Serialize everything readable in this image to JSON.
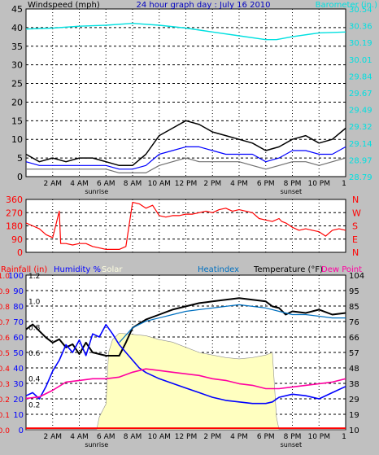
{
  "colors": {
    "background": "#c0c0c0",
    "plot_bg": "#ffffff",
    "grid": "#000000",
    "wind_speed": "#000000",
    "wind_gust": "#707070",
    "wind_avg": "#0000ff",
    "barometer": "#00e0e0",
    "direction": "#ff0000",
    "rain": "#ff0000",
    "humidity": "#0000ff",
    "solar": "#ffffc0",
    "heat_index": "#0070c0",
    "temperature": "#000000",
    "dew_point": "#ff00a0",
    "title": "#0000c0"
  },
  "chart_data": [
    {
      "id": "wind",
      "type": "line",
      "title": "24 hour graph day : July 16 2010",
      "ylabel_left": "Windspeed (mph)",
      "ylabel_right": "Barometer (in.)",
      "ylim_left": [
        0,
        45
      ],
      "yticks_left": [
        "0",
        "5",
        "10",
        "15",
        "20",
        "25",
        "30",
        "35",
        "40",
        "45"
      ],
      "ylim_right": [
        28.79,
        30.54
      ],
      "yticks_right": [
        "28.79",
        "28.97",
        "29.14",
        "29.32",
        "29.49",
        "29.67",
        "29.84",
        "30.01",
        "30.19",
        "30.36",
        "30.54"
      ],
      "x_ticks": [
        "2 AM",
        "4 AM",
        "6 AM",
        "8 AM",
        "10 AM",
        "12 PM",
        "2 PM",
        "4 PM",
        "6 PM",
        "8 PM",
        "10 PM",
        "1"
      ],
      "markers": [
        "sunrise",
        "sunset"
      ],
      "series": [
        {
          "key": "barometer",
          "axis": "right",
          "x": [
            0,
            2,
            4,
            6,
            8,
            10,
            12,
            14,
            16,
            18,
            18.8,
            20,
            22,
            24
          ],
          "y": [
            30.33,
            30.34,
            30.36,
            30.37,
            30.39,
            30.37,
            30.34,
            30.3,
            30.26,
            30.22,
            30.22,
            30.25,
            30.29,
            30.3
          ]
        },
        {
          "key": "wind_speed",
          "axis": "left",
          "x": [
            0,
            1,
            2,
            3,
            4,
            5,
            6,
            7,
            8,
            9,
            10,
            11,
            12,
            13,
            14,
            15,
            16,
            17,
            18,
            19,
            20,
            21,
            22,
            23,
            24
          ],
          "y": [
            6,
            4,
            5,
            4,
            5,
            5,
            4,
            3,
            3,
            6,
            11,
            13,
            15,
            14,
            12,
            11,
            10,
            9,
            7,
            8,
            10,
            11,
            9,
            10,
            13
          ]
        },
        {
          "key": "wind_avg",
          "axis": "left",
          "x": [
            0,
            1,
            2,
            3,
            4,
            5,
            6,
            7,
            8,
            9,
            10,
            11,
            12,
            13,
            14,
            15,
            16,
            17,
            18,
            19,
            20,
            21,
            22,
            23,
            24
          ],
          "y": [
            4,
            3,
            3,
            3,
            3,
            3,
            3,
            2,
            2,
            3,
            6,
            7,
            8,
            8,
            7,
            6,
            6,
            6,
            4,
            5,
            7,
            7,
            6,
            6,
            8
          ]
        },
        {
          "key": "wind_gust",
          "axis": "left",
          "x": [
            0,
            1,
            2,
            3,
            4,
            5,
            6,
            7,
            8,
            9,
            10,
            11,
            12,
            13,
            14,
            15,
            16,
            17,
            18,
            19,
            20,
            21,
            22,
            23,
            24
          ],
          "y": [
            2,
            2,
            2,
            2,
            2,
            2,
            2,
            1,
            1,
            1,
            3,
            4,
            5,
            4,
            4,
            4,
            4,
            3,
            2,
            3,
            4,
            4,
            3,
            4,
            5
          ]
        }
      ]
    },
    {
      "id": "direction",
      "type": "line",
      "yticks_left": [
        "360",
        "270",
        "180",
        "90",
        "0"
      ],
      "ylim": [
        0,
        360
      ],
      "yticks_right": [
        "N",
        "W",
        "S",
        "E",
        "N"
      ],
      "series": [
        {
          "key": "direction",
          "x": [
            0,
            0.5,
            1,
            1.5,
            2,
            2.5,
            2.6,
            3,
            3.5,
            4,
            4.5,
            5,
            5.5,
            6,
            6.5,
            7,
            7.5,
            8,
            8.5,
            9,
            9.5,
            10,
            10.5,
            11,
            11.5,
            12,
            12.5,
            13,
            13.5,
            14,
            14.5,
            15,
            15.5,
            16,
            16.5,
            17,
            17.5,
            18,
            18.5,
            19,
            19.2,
            19.5,
            20,
            20.5,
            21,
            21.5,
            22,
            22.5,
            23,
            23.5,
            24
          ],
          "y": [
            200,
            180,
            160,
            120,
            100,
            280,
            60,
            60,
            50,
            60,
            60,
            40,
            30,
            20,
            20,
            20,
            40,
            340,
            330,
            300,
            320,
            250,
            240,
            250,
            250,
            260,
            260,
            270,
            280,
            270,
            290,
            300,
            280,
            290,
            280,
            270,
            230,
            220,
            210,
            230,
            210,
            200,
            170,
            150,
            160,
            150,
            140,
            110,
            150,
            160,
            150
          ]
        }
      ]
    },
    {
      "id": "thermo",
      "type": "line",
      "legend": [
        "Rainfall (in)",
        "Humidity %",
        "Solar",
        "Heatindex",
        "Temperature (°F)",
        "Dew Point"
      ],
      "ylim_rain": [
        0,
        1
      ],
      "yticks_rain": [
        "0.0",
        "0.1",
        "0.2",
        "0.3",
        "0.4",
        "0.5",
        "0.6",
        "0.7",
        "0.8",
        "0.9",
        "1.0"
      ],
      "yticks_humidity": [
        "0",
        "10",
        "20",
        "30",
        "40",
        "50",
        "60",
        "70",
        "80",
        "90",
        "100"
      ],
      "ylim_temp": [
        10,
        104
      ],
      "yticks_temp": [
        "10",
        "19",
        "29",
        "38",
        "48",
        "57",
        "66",
        "76",
        "85",
        "95",
        "104"
      ],
      "solar_ylim": [
        0,
        1.2
      ],
      "solar_ticks": [
        "1.2",
        "1.0",
        "0.8",
        "0.6",
        "0.4",
        "0.2"
      ],
      "series": [
        {
          "key": "solar",
          "x": [
            0,
            5.3,
            5.5,
            6,
            6.2,
            6.5,
            7,
            8,
            9,
            10,
            11,
            12,
            13,
            14,
            15,
            16,
            17,
            18,
            18.5,
            18.8,
            19,
            24
          ],
          "y": [
            0,
            0,
            0.1,
            0.2,
            0.6,
            0.7,
            0.75,
            0.74,
            0.73,
            0.7,
            0.68,
            0.64,
            0.6,
            0.58,
            0.56,
            0.55,
            0.56,
            0.58,
            0.6,
            0.1,
            0,
            0
          ]
        },
        {
          "key": "temperature",
          "x": [
            0,
            0.5,
            1,
            1.5,
            2,
            2.5,
            3,
            3.5,
            4,
            4.5,
            5,
            6,
            7,
            7.5,
            8,
            9,
            10,
            11,
            12,
            13,
            14,
            15,
            16,
            17,
            18,
            18.5,
            19,
            19.5,
            20,
            21,
            22,
            23,
            24
          ],
          "y": [
            71,
            74,
            70,
            66,
            63,
            65,
            60,
            62,
            56,
            63,
            57,
            55,
            55,
            63,
            72,
            77,
            80,
            83,
            85,
            87,
            88,
            89,
            90,
            89,
            88,
            85,
            84,
            80,
            82,
            81,
            83,
            80,
            81
          ]
        },
        {
          "key": "heat_index",
          "x": [
            7,
            8,
            9,
            10,
            11,
            12,
            13,
            14,
            15,
            16,
            17,
            18,
            19,
            20,
            21,
            22,
            23,
            24
          ],
          "y": [
            63,
            72,
            76,
            78,
            80,
            82,
            83,
            84,
            85,
            86,
            85,
            84,
            82,
            80,
            80,
            79,
            78,
            78
          ]
        },
        {
          "key": "humidity",
          "x": [
            0,
            0.5,
            1,
            1.5,
            2,
            2.5,
            3,
            3.5,
            4,
            4.5,
            5,
            5.5,
            6,
            6.5,
            7,
            7.5,
            8,
            8.5,
            9,
            10,
            11,
            12,
            13,
            14,
            15,
            16,
            17,
            18,
            18.5,
            19,
            20,
            21,
            22,
            23,
            24
          ],
          "y": [
            22,
            24,
            20,
            28,
            38,
            45,
            55,
            50,
            58,
            48,
            62,
            60,
            68,
            62,
            55,
            50,
            45,
            40,
            37,
            33,
            30,
            27,
            24,
            21,
            19,
            18,
            17,
            17,
            18,
            21,
            23,
            22,
            20,
            24,
            28
          ]
        },
        {
          "key": "dew_point",
          "x": [
            0,
            1,
            2,
            3,
            4,
            5,
            6,
            7,
            8,
            9,
            10,
            11,
            12,
            13,
            14,
            15,
            16,
            17,
            18,
            19,
            20,
            21,
            22,
            23,
            24
          ],
          "y": [
            29,
            30,
            34,
            39,
            40,
            41,
            41,
            42,
            45,
            47,
            46,
            45,
            44,
            43,
            41,
            40,
            38,
            37,
            35,
            35,
            36,
            37,
            38,
            39,
            41
          ]
        },
        {
          "key": "rain",
          "x": [
            0,
            24
          ],
          "y": [
            0.01,
            0.01
          ]
        }
      ]
    }
  ],
  "footer": {
    "sunrise": "sunrise",
    "sunset": "sunset"
  }
}
